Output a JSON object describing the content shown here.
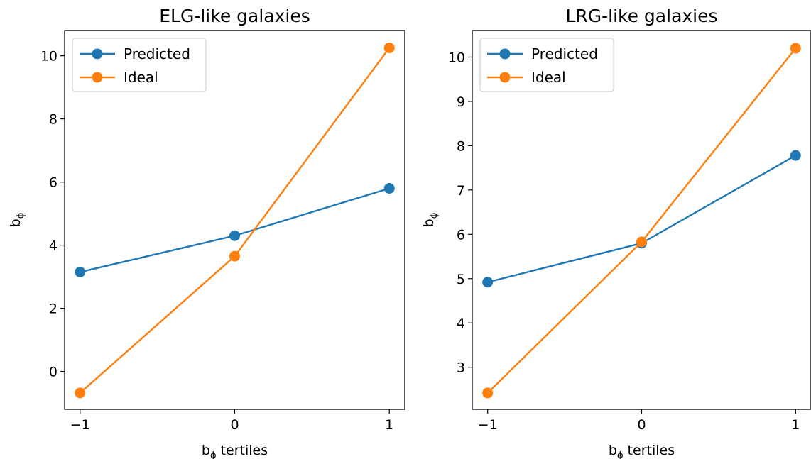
{
  "chart_data": [
    {
      "type": "line",
      "title": "ELG-like galaxies",
      "xlabel_base": "b",
      "xlabel_sub": "ϕ",
      "xlabel_rest": " tertiles",
      "ylabel_base": "b",
      "ylabel_sub": "ϕ",
      "x": [
        -1,
        0,
        1
      ],
      "xlim": [
        -1.1,
        1.1
      ],
      "ylim": [
        -1.2,
        10.8
      ],
      "xticks": [
        -1,
        0,
        1
      ],
      "xtick_labels": [
        "−1",
        "0",
        "1"
      ],
      "yticks": [
        0,
        2,
        4,
        6,
        8,
        10
      ],
      "ytick_labels": [
        "0",
        "2",
        "4",
        "6",
        "8",
        "10"
      ],
      "legend_position": "upper-left",
      "series": [
        {
          "name": "Predicted",
          "color": "#1f77b4",
          "values": [
            3.15,
            4.3,
            5.8
          ]
        },
        {
          "name": "Ideal",
          "color": "#ff7f0e",
          "values": [
            -0.68,
            3.65,
            10.25
          ]
        }
      ]
    },
    {
      "type": "line",
      "title": "LRG-like galaxies",
      "xlabel_base": "b",
      "xlabel_sub": "ϕ",
      "xlabel_rest": " tertiles",
      "ylabel_base": "b",
      "ylabel_sub": "ϕ",
      "x": [
        -1,
        0,
        1
      ],
      "xlim": [
        -1.1,
        1.1
      ],
      "ylim": [
        2.05,
        10.6
      ],
      "xticks": [
        -1,
        0,
        1
      ],
      "xtick_labels": [
        "−1",
        "0",
        "1"
      ],
      "yticks": [
        3,
        4,
        5,
        6,
        7,
        8,
        9,
        10
      ],
      "ytick_labels": [
        "3",
        "4",
        "5",
        "6",
        "7",
        "8",
        "9",
        "10"
      ],
      "legend_position": "upper-left",
      "series": [
        {
          "name": "Predicted",
          "color": "#1f77b4",
          "values": [
            4.92,
            5.8,
            7.78
          ]
        },
        {
          "name": "Ideal",
          "color": "#ff7f0e",
          "values": [
            2.42,
            5.83,
            10.2
          ]
        }
      ]
    }
  ]
}
